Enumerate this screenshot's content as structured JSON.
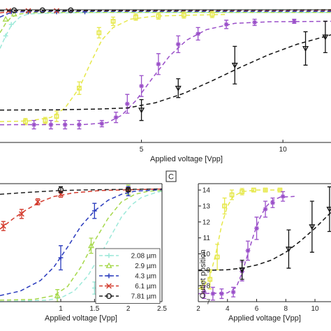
{
  "chart_data": [
    {
      "type": "line",
      "panel": "top",
      "panel_label": "",
      "xlabel": "Applied voltage [Vpp]",
      "ylabel": "",
      "xlim": [
        0,
        11.7
      ],
      "ylim": [
        0,
        12.7
      ],
      "xticks": [
        5,
        10
      ],
      "yticks": [],
      "grid": false,
      "legend": "none",
      "series": [
        {
          "color": "#9ce9d9",
          "marker": "plus",
          "points": [
            [
              0.2,
              10.2
            ],
            [
              0.4,
              11.3
            ]
          ],
          "fit": [
            [
              0,
              9.0
            ],
            [
              0.2,
              10.2
            ],
            [
              0.4,
              11.2
            ],
            [
              0.7,
              12.0
            ],
            [
              1.0,
              12.3
            ],
            [
              2,
              12.4
            ],
            [
              4,
              12.45
            ],
            [
              11.7,
              12.45
            ]
          ]
        },
        {
          "color": "#a6d84a",
          "marker": "triangle",
          "points": [
            [
              0.2,
              11.8
            ],
            [
              0.5,
              12.3
            ]
          ],
          "fit": [
            [
              0,
              10.5
            ],
            [
              0.2,
              11.4
            ],
            [
              0.4,
              12.0
            ],
            [
              0.7,
              12.3
            ],
            [
              1.0,
              12.4
            ],
            [
              2,
              12.45
            ],
            [
              11.7,
              12.45
            ]
          ]
        },
        {
          "color": "#2a3bbd",
          "marker": "plus",
          "points": [
            [
              0.4,
              12.5
            ],
            [
              1.0,
              12.5
            ],
            [
              2.0,
              12.5
            ],
            [
              3.0,
              12.5
            ]
          ],
          "fit": [
            [
              0,
              12.0
            ],
            [
              0.3,
              12.35
            ],
            [
              0.7,
              12.5
            ],
            [
              2,
              12.55
            ],
            [
              11.7,
              12.55
            ]
          ]
        },
        {
          "color": "#d33a2c",
          "marker": "cross",
          "points": [
            [
              0.3,
              12.6
            ],
            [
              1.0,
              12.6
            ],
            [
              2.0,
              12.6
            ]
          ],
          "fit": [
            [
              0,
              12.4
            ],
            [
              0.5,
              12.6
            ],
            [
              11.7,
              12.65
            ]
          ]
        },
        {
          "color": "#222222",
          "marker": "circle",
          "points": [
            [
              0.5,
              12.65
            ],
            [
              1.5,
              12.65
            ],
            [
              2.5,
              12.65
            ]
          ],
          "fit": [
            [
              0,
              12.6
            ],
            [
              11.7,
              12.7
            ]
          ]
        },
        {
          "color": "#e6e84a",
          "marker": "square",
          "points": [
            [
              0.9,
              2.0
            ],
            [
              1.6,
              2.1
            ],
            [
              2.0,
              2.5
            ],
            [
              2.8,
              5.2
            ],
            [
              3.5,
              10.5
            ],
            [
              4.0,
              11.6
            ],
            [
              4.8,
              12.0
            ],
            [
              5.6,
              12.1
            ],
            [
              6.5,
              12.2
            ],
            [
              7.5,
              12.25
            ]
          ],
          "errors": [
            0.3,
            0.3,
            0.5,
            0.6,
            0.5,
            0.4,
            0.3,
            0.3,
            0.3,
            0.3
          ],
          "fit": [
            [
              0,
              2.0
            ],
            [
              1.0,
              2.05
            ],
            [
              1.8,
              2.4
            ],
            [
              2.3,
              3.3
            ],
            [
              2.8,
              5.2
            ],
            [
              3.2,
              7.6
            ],
            [
              3.6,
              9.8
            ],
            [
              4.0,
              11.0
            ],
            [
              4.6,
              11.8
            ],
            [
              5.5,
              12.1
            ],
            [
              7,
              12.2
            ],
            [
              8,
              12.25
            ]
          ]
        },
        {
          "color": "#9a4fc9",
          "marker": "star",
          "points": [
            [
              1.2,
              1.7
            ],
            [
              1.8,
              1.7
            ],
            [
              2.3,
              1.7
            ],
            [
              2.8,
              1.7
            ],
            [
              3.6,
              1.8
            ],
            [
              4.1,
              2.4
            ],
            [
              4.5,
              3.7
            ],
            [
              5.0,
              5.4
            ],
            [
              5.6,
              7.5
            ],
            [
              6.3,
              9.4
            ],
            [
              7.0,
              10.4
            ],
            [
              8.0,
              11.3
            ],
            [
              9.0,
              11.5
            ],
            [
              10.4,
              11.6
            ]
          ],
          "errors": [
            0.4,
            0.4,
            0.4,
            0.4,
            0.3,
            0.5,
            0.9,
            1.0,
            1.0,
            0.8,
            0.6,
            0.4,
            0.3,
            0.2
          ],
          "fit": [
            [
              0,
              1.7
            ],
            [
              3.0,
              1.72
            ],
            [
              3.8,
              1.9
            ],
            [
              4.3,
              2.6
            ],
            [
              4.8,
              4.0
            ],
            [
              5.4,
              6.2
            ],
            [
              6.0,
              8.3
            ],
            [
              6.6,
              9.8
            ],
            [
              7.3,
              10.8
            ],
            [
              8.3,
              11.4
            ],
            [
              9.5,
              11.55
            ],
            [
              11.7,
              11.6
            ]
          ]
        },
        {
          "color": "#111111",
          "marker": "triangle-down",
          "points": [
            [
              5.0,
              3.1
            ],
            [
              6.3,
              5.2
            ],
            [
              8.3,
              7.4
            ],
            [
              10.8,
              9.0
            ],
            [
              11.5,
              10.1
            ]
          ],
          "errors": [
            1.0,
            0.9,
            1.8,
            1.6,
            1.5
          ],
          "fit": [
            [
              0,
              3.1
            ],
            [
              2,
              3.12
            ],
            [
              3.5,
              3.2
            ],
            [
              4.5,
              3.3
            ],
            [
              5.5,
              3.8
            ],
            [
              6.5,
              4.7
            ],
            [
              7.5,
              5.9
            ],
            [
              8.5,
              7.2
            ],
            [
              9.5,
              8.4
            ],
            [
              10.5,
              9.4
            ],
            [
              11.7,
              10.3
            ]
          ]
        }
      ]
    },
    {
      "type": "line",
      "panel": "bottom-left",
      "panel_label": "",
      "xlabel": "Applied voltage [Vpp]",
      "ylabel": "",
      "xlim": [
        0.1,
        2.5
      ],
      "ylim": [
        6.6,
        14.4
      ],
      "xticks": [
        1,
        1.5,
        2,
        2.5
      ],
      "yticks": [],
      "grid": false,
      "legend": "bottom-right",
      "series": [
        {
          "name": "2.08 µm",
          "color": "#9ce9d9",
          "marker": "plus",
          "points": [
            [
              1.5,
              7.5
            ],
            [
              2.0,
              13.9
            ]
          ],
          "errors": [
            0.4,
            0.2
          ],
          "fit": [
            [
              0.1,
              6.6
            ],
            [
              0.8,
              6.7
            ],
            [
              1.0,
              6.85
            ],
            [
              1.2,
              7.3
            ],
            [
              1.4,
              8.3
            ],
            [
              1.6,
              9.8
            ],
            [
              1.75,
              11.0
            ],
            [
              1.9,
              12.2
            ],
            [
              2.05,
              13.0
            ],
            [
              2.2,
              13.5
            ],
            [
              2.4,
              13.8
            ],
            [
              2.5,
              13.9
            ]
          ]
        },
        {
          "name": "2.9 µm",
          "color": "#a6d84a",
          "marker": "triangle",
          "points": [
            [
              0.95,
              7.0
            ],
            [
              1.45,
              10.3
            ],
            [
              2.0,
              14.0
            ]
          ],
          "errors": [
            0.4,
            0.5,
            0.3
          ],
          "fit": [
            [
              0.1,
              6.7
            ],
            [
              0.6,
              6.75
            ],
            [
              0.9,
              7.0
            ],
            [
              1.1,
              7.6
            ],
            [
              1.3,
              8.9
            ],
            [
              1.5,
              10.6
            ],
            [
              1.7,
              12.1
            ],
            [
              1.9,
              13.2
            ],
            [
              2.1,
              13.7
            ],
            [
              2.3,
              13.9
            ],
            [
              2.5,
              13.95
            ]
          ]
        },
        {
          "name": "4.3 µm",
          "color": "#2a3bbd",
          "marker": "plus",
          "points": [
            [
              1.0,
              9.5
            ],
            [
              1.5,
              12.6
            ],
            [
              2.0,
              13.9
            ]
          ],
          "errors": [
            0.8,
            0.5,
            0.3
          ],
          "fit": [
            [
              0.1,
              7.0
            ],
            [
              0.4,
              7.3
            ],
            [
              0.7,
              8.0
            ],
            [
              0.9,
              8.9
            ],
            [
              1.1,
              10.2
            ],
            [
              1.3,
              11.6
            ],
            [
              1.5,
              12.6
            ],
            [
              1.7,
              13.3
            ],
            [
              1.9,
              13.7
            ],
            [
              2.1,
              13.9
            ],
            [
              2.5,
              14.0
            ]
          ]
        },
        {
          "name": "6.1 µm",
          "color": "#d33a2c",
          "marker": "cross",
          "points": [
            [
              0.15,
              11.6
            ],
            [
              0.42,
              12.4
            ],
            [
              0.66,
              13.2
            ],
            [
              1.0,
              13.7
            ],
            [
              2.0,
              14.0
            ]
          ],
          "errors": [
            0.3,
            0.3,
            0.2,
            0.2,
            0.1
          ],
          "fit": [
            [
              0.1,
              11.4
            ],
            [
              0.3,
              12.1
            ],
            [
              0.5,
              12.7
            ],
            [
              0.7,
              13.2
            ],
            [
              0.9,
              13.55
            ],
            [
              1.2,
              13.8
            ],
            [
              1.6,
              13.95
            ],
            [
              2.5,
              14.05
            ]
          ]
        },
        {
          "name": "7.81 µm",
          "color": "#222222",
          "marker": "circle",
          "points": [
            [
              1.0,
              14.0
            ],
            [
              2.0,
              14.0
            ]
          ],
          "errors": [
            0.2,
            0.1
          ],
          "fit": [
            [
              0.1,
              13.7
            ],
            [
              0.6,
              13.85
            ],
            [
              1.0,
              13.95
            ],
            [
              1.5,
              14.0
            ],
            [
              2.5,
              14.05
            ]
          ]
        }
      ]
    },
    {
      "type": "line",
      "panel": "bottom-right",
      "panel_label": "C",
      "xlabel": "Applied voltage [Vpp]",
      "ylabel": "Outlet position",
      "xlim": [
        2,
        11.1
      ],
      "ylim": [
        7,
        14.4
      ],
      "xticks": [
        2,
        4,
        6,
        8,
        10
      ],
      "yticks": [
        7,
        8,
        9,
        10,
        11,
        12,
        13,
        14
      ],
      "grid": false,
      "legend": "none",
      "series": [
        {
          "color": "#e6e84a",
          "marker": "square",
          "points": [
            [
              2.3,
              7.9
            ],
            [
              2.8,
              8.4
            ],
            [
              3.3,
              9.8
            ],
            [
              3.8,
              13.0
            ],
            [
              4.3,
              13.7
            ],
            [
              5.0,
              13.9
            ],
            [
              5.8,
              14.0
            ],
            [
              6.6,
              14.0
            ],
            [
              7.6,
              14.0
            ]
          ],
          "errors": [
            0.4,
            0.6,
            0.8,
            0.5,
            0.3,
            0.2,
            0.1,
            0.1,
            0.1
          ],
          "fit": [
            [
              2.0,
              7.8
            ],
            [
              2.4,
              8.0
            ],
            [
              2.8,
              8.6
            ],
            [
              3.2,
              10.0
            ],
            [
              3.6,
              11.8
            ],
            [
              4.0,
              13.0
            ],
            [
              4.4,
              13.6
            ],
            [
              5.0,
              13.9
            ],
            [
              6.0,
              14.0
            ],
            [
              7.8,
              14.0
            ]
          ]
        },
        {
          "color": "#9a4fc9",
          "marker": "star",
          "points": [
            [
              2.4,
              7.6
            ],
            [
              3.0,
              7.5
            ],
            [
              3.6,
              7.5
            ],
            [
              4.4,
              7.6
            ],
            [
              5.0,
              8.9
            ],
            [
              5.4,
              10.2
            ],
            [
              6.0,
              11.6
            ],
            [
              6.6,
              12.8
            ],
            [
              7.1,
              13.2
            ],
            [
              7.8,
              13.6
            ]
          ],
          "errors": [
            0.4,
            0.4,
            0.3,
            0.3,
            0.6,
            0.6,
            0.7,
            0.5,
            0.3,
            0.3
          ],
          "fit": [
            [
              2.0,
              7.5
            ],
            [
              4.0,
              7.55
            ],
            [
              4.6,
              7.9
            ],
            [
              5.0,
              8.8
            ],
            [
              5.4,
              10.0
            ],
            [
              5.8,
              11.2
            ],
            [
              6.2,
              12.2
            ],
            [
              6.6,
              12.9
            ],
            [
              7.0,
              13.3
            ],
            [
              7.6,
              13.55
            ],
            [
              8.6,
              13.6
            ]
          ]
        },
        {
          "color": "#111111",
          "marker": "triangle-down",
          "points": [
            [
              5.0,
              9.0
            ],
            [
              8.2,
              10.3
            ],
            [
              9.8,
              11.7
            ],
            [
              11.0,
              12.8
            ]
          ],
          "errors": [
            0.6,
            1.2,
            1.6,
            1.4
          ],
          "fit": [
            [
              2.0,
              8.95
            ],
            [
              4.0,
              9.0
            ],
            [
              5.0,
              9.1
            ],
            [
              6.0,
              9.3
            ],
            [
              7.0,
              9.6
            ],
            [
              8.0,
              10.1
            ],
            [
              9.0,
              10.8
            ],
            [
              10.0,
              11.6
            ],
            [
              11.1,
              12.6
            ]
          ]
        }
      ]
    }
  ]
}
